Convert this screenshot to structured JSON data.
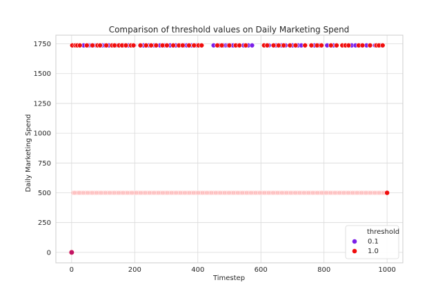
{
  "chart_data": {
    "type": "scatter",
    "title": "Comparison of threshold values on Daily Marketing Spend",
    "xlabel": "Timestep",
    "ylabel": "Daily Marketing Spend",
    "xlim": [
      -50,
      1050
    ],
    "ylim": [
      -87.5,
      1822.5
    ],
    "xticks": [
      0,
      200,
      400,
      600,
      800,
      1000
    ],
    "yticks": [
      0,
      250,
      500,
      750,
      1000,
      1250,
      1500,
      1750
    ],
    "grid": true,
    "legend": {
      "title": "threshold",
      "placement": "bottom-right",
      "entries": [
        "0.1",
        "1.0"
      ]
    },
    "colors": {
      "0.1": "#7b1fe8",
      "1.0": "#f00d0d",
      "faint": "#ffb3b3",
      "grid": "#d9d9d9",
      "spine": "#cccccc"
    },
    "series": [
      {
        "name": "0.1",
        "high_level": 1737,
        "low_level": 500,
        "x_high": [
          8,
          22,
          38,
          55,
          62,
          70,
          78,
          98,
          105,
          118,
          140,
          165,
          180,
          198,
          228,
          245,
          262,
          280,
          295,
          312,
          330,
          348,
          358,
          365,
          380,
          395,
          450,
          468,
          482,
          490,
          496,
          505,
          512,
          525,
          545,
          560,
          572,
          612,
          625,
          648,
          665,
          678,
          700,
          718,
          728,
          770,
          785,
          810,
          830,
          870,
          888,
          900,
          918,
          935,
          948,
          962,
          980
        ],
        "x_low": [
          5,
          18,
          30,
          44,
          58,
          72,
          86,
          100,
          114,
          128,
          142,
          156,
          170,
          184,
          198,
          212,
          226,
          240,
          254,
          268,
          282,
          296,
          310,
          324,
          338,
          352,
          366,
          380,
          394,
          408,
          422,
          436,
          450,
          464,
          478,
          492,
          506,
          520,
          534,
          548,
          562,
          576,
          590,
          604,
          618,
          632,
          646,
          660,
          674,
          688,
          702,
          716,
          730,
          744,
          758,
          772,
          786,
          800,
          814,
          828,
          842,
          856,
          870,
          884,
          898,
          912,
          926,
          940,
          954,
          968,
          982,
          996
        ]
      },
      {
        "name": "1.0",
        "high_level": 1737,
        "low_level": 500,
        "x_high": [
          2,
          12,
          18,
          26,
          48,
          66,
          82,
          90,
          110,
          128,
          136,
          150,
          160,
          172,
          188,
          196,
          218,
          236,
          252,
          268,
          288,
          302,
          322,
          340,
          352,
          372,
          388,
          402,
          412,
          462,
          476,
          500,
          520,
          532,
          552,
          610,
          620,
          640,
          656,
          672,
          692,
          710,
          740,
          760,
          778,
          792,
          822,
          840,
          858,
          868,
          878,
          910,
          922,
          946,
          966,
          974,
          986
        ],
        "x_low": [
          10,
          24,
          37,
          51,
          65,
          79,
          93,
          107,
          121,
          135,
          149,
          163,
          177,
          191,
          205,
          219,
          233,
          247,
          261,
          275,
          289,
          303,
          317,
          331,
          345,
          359,
          373,
          387,
          401,
          415,
          429,
          443,
          457,
          471,
          485,
          499,
          513,
          527,
          541,
          555,
          569,
          583,
          597,
          611,
          625,
          639,
          653,
          667,
          681,
          695,
          709,
          723,
          737,
          751,
          765,
          779,
          793,
          807,
          821,
          835,
          849,
          863,
          877,
          891,
          905,
          919,
          933,
          947,
          961,
          975,
          989
        ],
        "final_point": {
          "x": 1000,
          "y": 500
        }
      }
    ],
    "origin_point": {
      "x": 0,
      "y": 0
    }
  }
}
